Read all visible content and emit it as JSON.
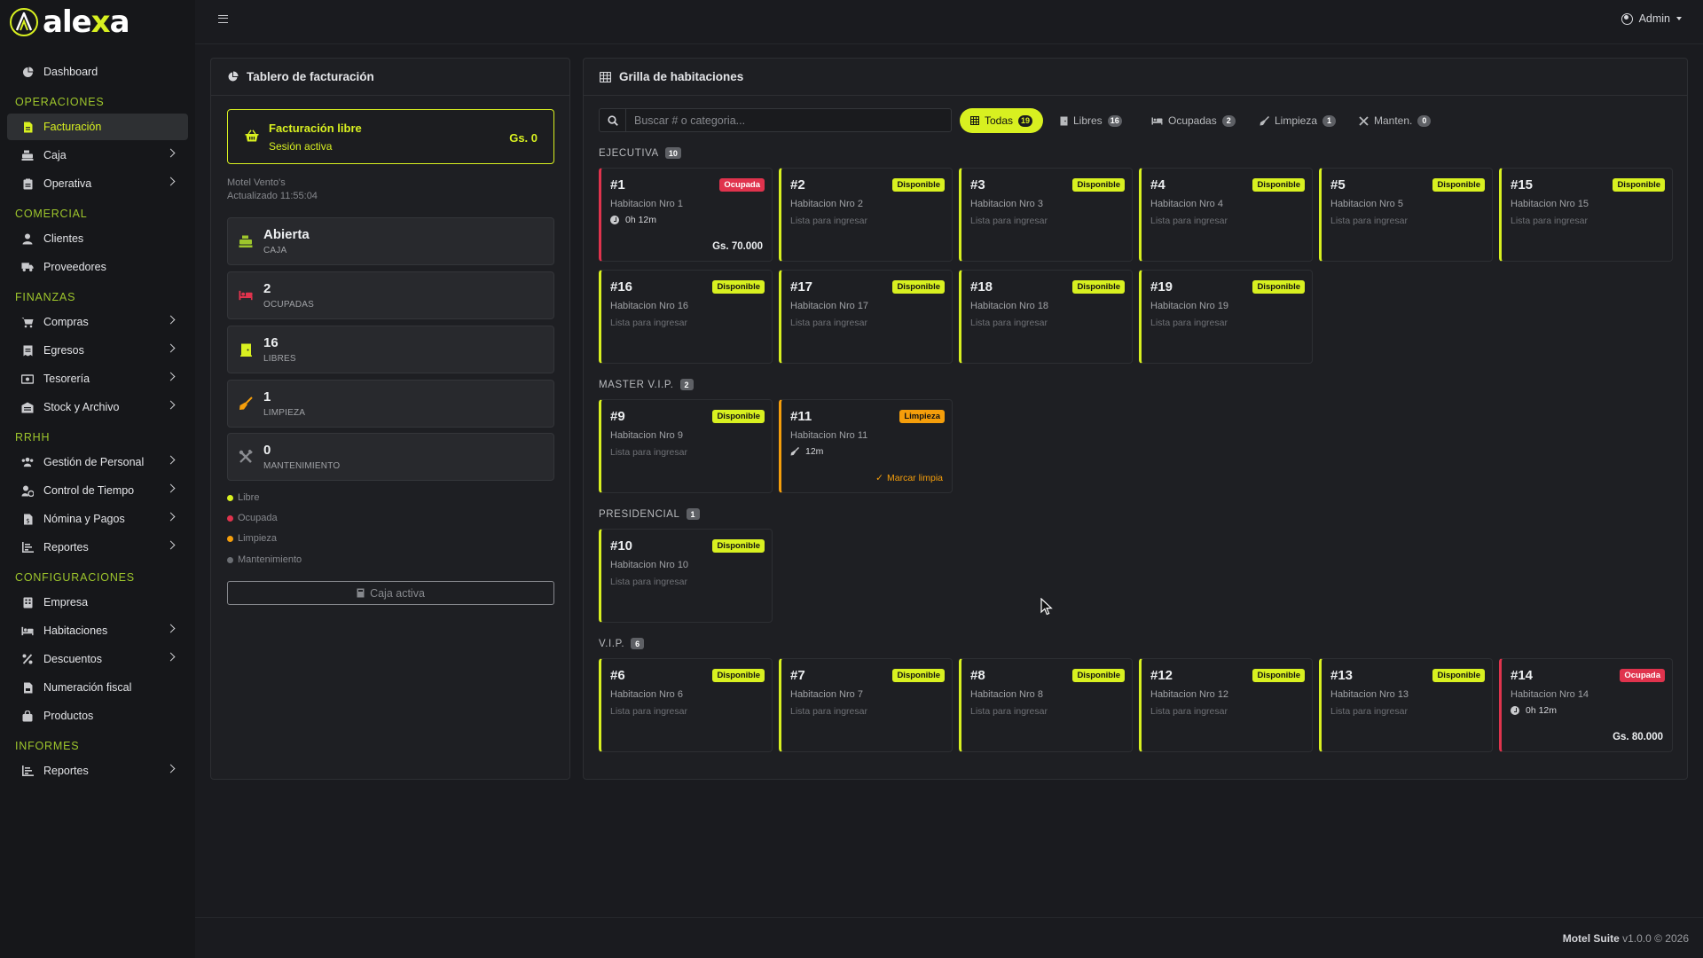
{
  "brand": {
    "logo_pre": "ale",
    "logo_x": "x",
    "logo_post": "a"
  },
  "colors": {
    "accent": "#d8f020",
    "occupied": "#e0334d",
    "cleaning": "#f59e0b",
    "maintenance": "#6b6e73",
    "background": "#1a1b1f"
  },
  "topbar": {
    "user": "Admin"
  },
  "sidebar": {
    "dashboard": "Dashboard",
    "sections": {
      "operaciones": "OPERACIONES",
      "comercial": "COMERCIAL",
      "finanzas": "FINANZAS",
      "rrhh": "RRHH",
      "configuraciones": "CONFIGURACIONES",
      "informes": "INFORMES"
    },
    "items": {
      "facturacion": "Facturación",
      "caja": "Caja",
      "operativa": "Operativa",
      "clientes": "Clientes",
      "proveedores": "Proveedores",
      "compras": "Compras",
      "egresos": "Egresos",
      "tesoreria": "Tesorería",
      "stock": "Stock y Archivo",
      "personal": "Gestión de Personal",
      "tiempo": "Control de Tiempo",
      "nomina": "Nómina y Pagos",
      "reportes_rrhh": "Reportes",
      "empresa": "Empresa",
      "habitaciones": "Habitaciones",
      "descuentos": "Descuentos",
      "numeracion": "Numeración fiscal",
      "productos": "Productos",
      "reportes_inf": "Reportes"
    }
  },
  "billing": {
    "title": "Tablero de facturación",
    "free_title": "Facturación libre",
    "free_sub": "Sesión activa",
    "free_amount": "Gs. 0",
    "motel": "Motel Vento's",
    "updated": "Actualizado 11:55:04",
    "stats": {
      "caja": {
        "value": "Abierta",
        "label": "CAJA"
      },
      "ocupadas": {
        "value": "2",
        "label": "OCUPADAS"
      },
      "libres": {
        "value": "16",
        "label": "LIBRES"
      },
      "limpieza": {
        "value": "1",
        "label": "LIMPIEZA"
      },
      "mantenimiento": {
        "value": "0",
        "label": "MANTENIMIENTO"
      }
    },
    "legend": {
      "libre": "Libre",
      "ocupada": "Ocupada",
      "limpieza": "Limpieza",
      "mantenimiento": "Mantenimiento"
    },
    "caja_button": "Caja activa"
  },
  "grid": {
    "title": "Grilla de habitaciones",
    "search_placeholder": "Buscar # o categoria...",
    "filters": {
      "todas": {
        "label": "Todas",
        "count": "19"
      },
      "libres": {
        "label": "Libres",
        "count": "16"
      },
      "ocupadas": {
        "label": "Ocupadas",
        "count": "2"
      },
      "limpieza": {
        "label": "Limpieza",
        "count": "1"
      },
      "manten": {
        "label": "Manten.",
        "count": "0"
      }
    },
    "categories": {
      "ejecutiva": {
        "name": "EJECUTIVA",
        "count": "10"
      },
      "master": {
        "name": "MASTER V.I.P.",
        "count": "2"
      },
      "presidencial": {
        "name": "PRESIDENCIAL",
        "count": "1"
      },
      "vip": {
        "name": "V.I.P.",
        "count": "6"
      }
    },
    "rooms": {
      "r1": {
        "num": "#1",
        "status": "Ocupada",
        "name": "Habitacion Nro 1",
        "time": "0h 12m",
        "amount": "Gs. 70.000"
      },
      "r2": {
        "num": "#2",
        "status": "Disponible",
        "name": "Habitacion Nro 2",
        "sub": "Lista para ingresar"
      },
      "r3": {
        "num": "#3",
        "status": "Disponible",
        "name": "Habitacion Nro 3",
        "sub": "Lista para ingresar"
      },
      "r4": {
        "num": "#4",
        "status": "Disponible",
        "name": "Habitacion Nro 4",
        "sub": "Lista para ingresar"
      },
      "r5": {
        "num": "#5",
        "status": "Disponible",
        "name": "Habitacion Nro 5",
        "sub": "Lista para ingresar"
      },
      "r15": {
        "num": "#15",
        "status": "Disponible",
        "name": "Habitacion Nro 15",
        "sub": "Lista para ingresar"
      },
      "r16": {
        "num": "#16",
        "status": "Disponible",
        "name": "Habitacion Nro 16",
        "sub": "Lista para ingresar"
      },
      "r17": {
        "num": "#17",
        "status": "Disponible",
        "name": "Habitacion Nro 17",
        "sub": "Lista para ingresar"
      },
      "r18": {
        "num": "#18",
        "status": "Disponible",
        "name": "Habitacion Nro 18",
        "sub": "Lista para ingresar"
      },
      "r19": {
        "num": "#19",
        "status": "Disponible",
        "name": "Habitacion Nro 19",
        "sub": "Lista para ingresar"
      },
      "r9": {
        "num": "#9",
        "status": "Disponible",
        "name": "Habitacion Nro 9",
        "sub": "Lista para ingresar"
      },
      "r11": {
        "num": "#11",
        "status": "Limpieza",
        "name": "Habitacion Nro 11",
        "time": "12m",
        "action": "Marcar limpia"
      },
      "r10": {
        "num": "#10",
        "status": "Disponible",
        "name": "Habitacion Nro 10",
        "sub": "Lista para ingresar"
      },
      "r6": {
        "num": "#6",
        "status": "Disponible",
        "name": "Habitacion Nro 6",
        "sub": "Lista para ingresar"
      },
      "r7": {
        "num": "#7",
        "status": "Disponible",
        "name": "Habitacion Nro 7",
        "sub": "Lista para ingresar"
      },
      "r8": {
        "num": "#8",
        "status": "Disponible",
        "name": "Habitacion Nro 8",
        "sub": "Lista para ingresar"
      },
      "r12": {
        "num": "#12",
        "status": "Disponible",
        "name": "Habitacion Nro 12",
        "sub": "Lista para ingresar"
      },
      "r13": {
        "num": "#13",
        "status": "Disponible",
        "name": "Habitacion Nro 13",
        "sub": "Lista para ingresar"
      },
      "r14": {
        "num": "#14",
        "status": "Ocupada",
        "name": "Habitacion Nro 14",
        "time": "0h 12m",
        "amount": "Gs. 80.000"
      }
    }
  },
  "footer": {
    "product": "Motel Suite",
    "version": "v1.0.0 © 2026"
  }
}
